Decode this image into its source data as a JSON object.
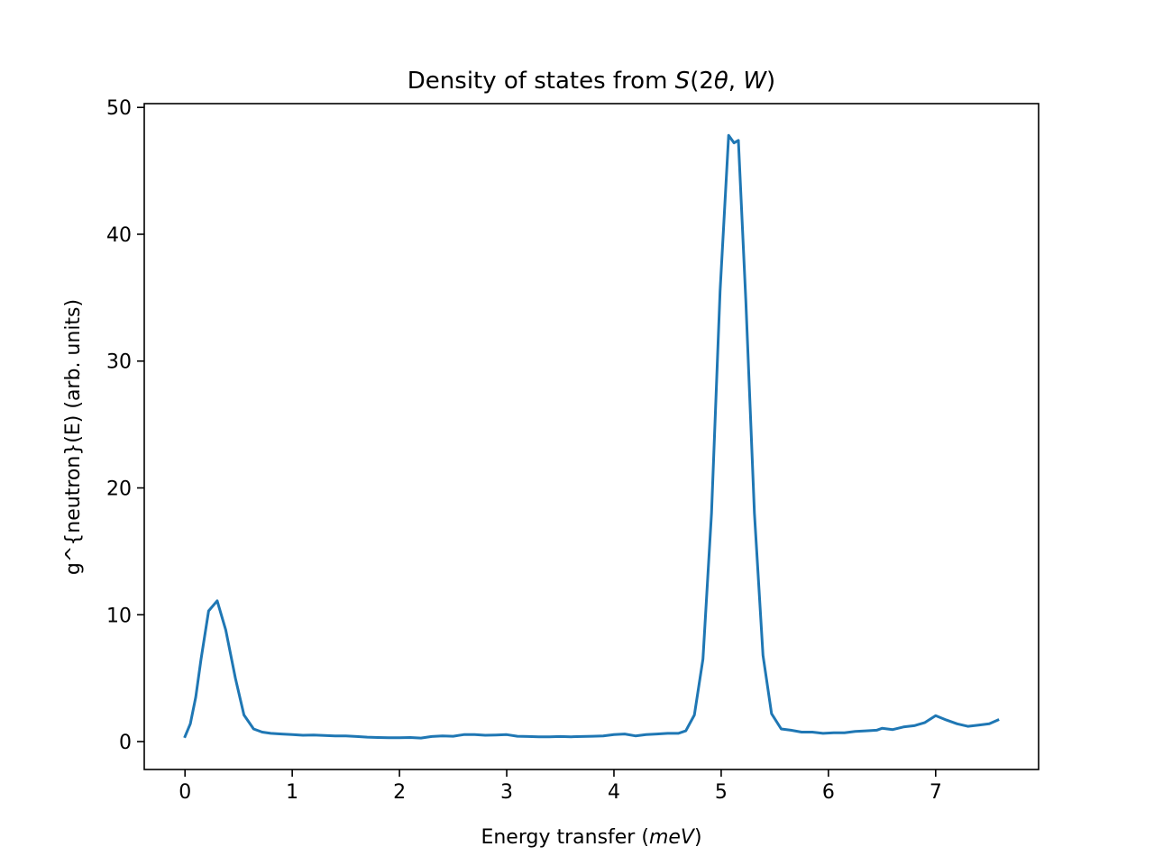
{
  "chart_data": {
    "type": "line",
    "title_prefix": "Density of states from ",
    "title_math": {
      "S": "S",
      "open": "(2",
      "theta": "θ",
      "comma": ", ",
      "W": "W",
      "close": ")"
    },
    "xlabel_prefix": "Energy transfer (",
    "xlabel_unit": "meV",
    "xlabel_suffix": ")",
    "ylabel": "g^{neutron}(E) (arb. units)",
    "xlim": [
      -0.38,
      7.96
    ],
    "ylim": [
      -2.2,
      50.3
    ],
    "xticks": [
      0,
      1,
      2,
      3,
      4,
      5,
      6,
      7
    ],
    "yticks": [
      0,
      10,
      20,
      30,
      40,
      50
    ],
    "grid": false,
    "legend": "none",
    "line_color": "#1f77b4",
    "series": [
      {
        "x": [
          0.0,
          0.05,
          0.1,
          0.15,
          0.22,
          0.3,
          0.38,
          0.47,
          0.55,
          0.64,
          0.72,
          0.8,
          0.9,
          1.0,
          1.1,
          1.2,
          1.3,
          1.4,
          1.5,
          1.6,
          1.7,
          1.8,
          1.9,
          2.0,
          2.1,
          2.2,
          2.3,
          2.4,
          2.5,
          2.6,
          2.7,
          2.8,
          2.9,
          3.0,
          3.1,
          3.2,
          3.3,
          3.4,
          3.5,
          3.6,
          3.7,
          3.8,
          3.9,
          4.0,
          4.1,
          4.2,
          4.3,
          4.4,
          4.5,
          4.6,
          4.67,
          4.75,
          4.83,
          4.91,
          4.99,
          5.07,
          5.12,
          5.16,
          5.23,
          5.31,
          5.39,
          5.47,
          5.56,
          5.65,
          5.75,
          5.85,
          5.95,
          6.05,
          6.15,
          6.25,
          6.35,
          6.45,
          6.5,
          6.6,
          6.7,
          6.8,
          6.9,
          7.0,
          7.1,
          7.2,
          7.3,
          7.4,
          7.5,
          7.58
        ],
        "y": [
          0.4,
          1.4,
          3.5,
          6.5,
          10.3,
          11.1,
          8.8,
          5.0,
          2.1,
          1.0,
          0.75,
          0.65,
          0.6,
          0.55,
          0.5,
          0.52,
          0.48,
          0.45,
          0.45,
          0.4,
          0.35,
          0.32,
          0.3,
          0.3,
          0.32,
          0.28,
          0.4,
          0.45,
          0.42,
          0.55,
          0.55,
          0.5,
          0.52,
          0.55,
          0.42,
          0.4,
          0.38,
          0.38,
          0.4,
          0.38,
          0.4,
          0.42,
          0.45,
          0.55,
          0.6,
          0.45,
          0.55,
          0.6,
          0.65,
          0.65,
          0.85,
          2.1,
          6.5,
          18.0,
          35.5,
          47.8,
          47.2,
          47.4,
          34.7,
          18.0,
          6.8,
          2.2,
          1.0,
          0.9,
          0.75,
          0.75,
          0.65,
          0.7,
          0.7,
          0.8,
          0.85,
          0.9,
          1.05,
          0.95,
          1.15,
          1.25,
          1.5,
          2.05,
          1.7,
          1.4,
          1.2,
          1.3,
          1.4,
          1.7
        ]
      }
    ]
  }
}
